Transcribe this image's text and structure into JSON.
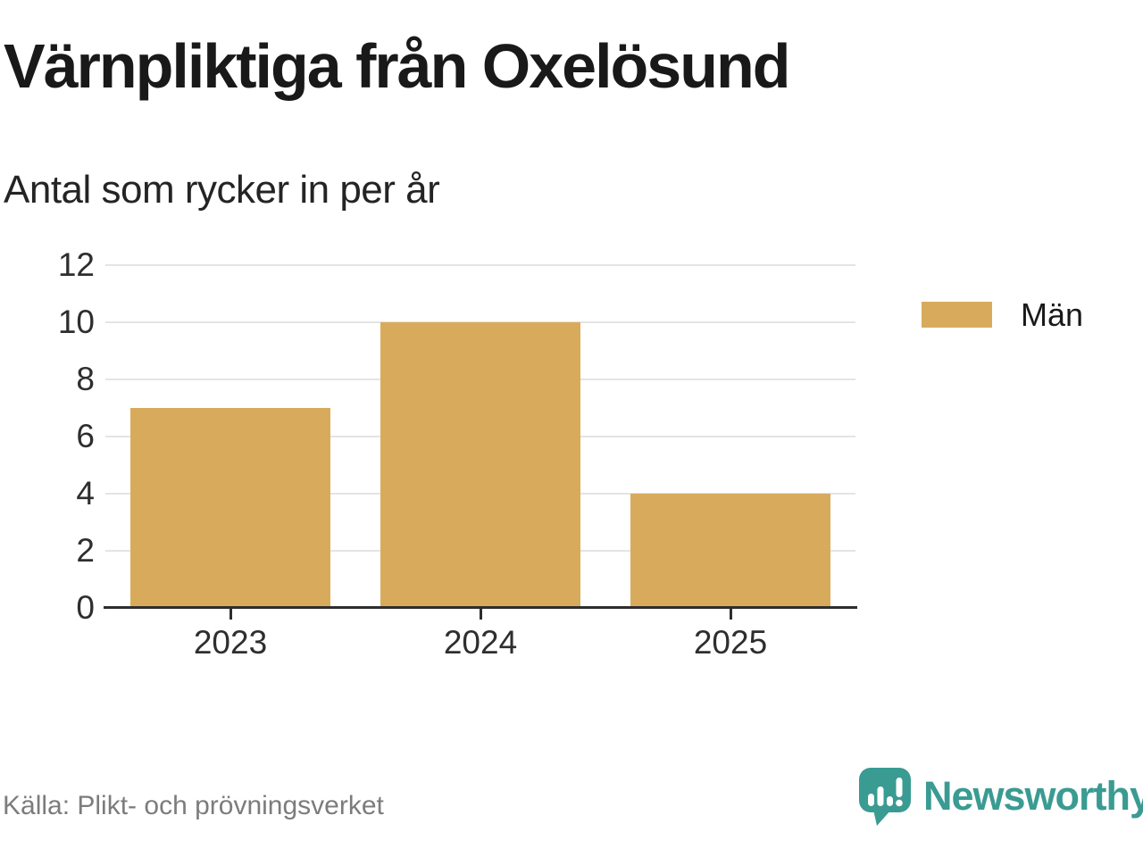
{
  "title": "Värnpliktiga från Oxelösund",
  "subtitle": "Antal som rycker in per år",
  "source": "Källa: Plikt- och prövningsverket",
  "brand": {
    "name": "Newsworthy",
    "color": "#3a9b92"
  },
  "colors": {
    "bar": "#d8ab5c",
    "grid": "#e4e4e4",
    "axis": "#2e2e2e",
    "text": "#191919",
    "muted": "#7c7c7c"
  },
  "legend": {
    "position": "right",
    "items": [
      {
        "label": "Män",
        "color": "#d8ab5c"
      }
    ]
  },
  "chart_data": {
    "type": "bar",
    "categories": [
      "2023",
      "2024",
      "2025"
    ],
    "series": [
      {
        "name": "Män",
        "values": [
          7,
          10,
          4
        ],
        "color": "#d8ab5c"
      }
    ],
    "title": "Värnpliktiga från Oxelösund",
    "subtitle": "Antal som rycker in per år",
    "xlabel": "",
    "ylabel": "",
    "ylim": [
      0,
      12
    ],
    "yticks": [
      0,
      2,
      4,
      6,
      8,
      10,
      12
    ],
    "grid": true,
    "legend_position": "right",
    "source": "Källa: Plikt- och prövningsverket"
  }
}
